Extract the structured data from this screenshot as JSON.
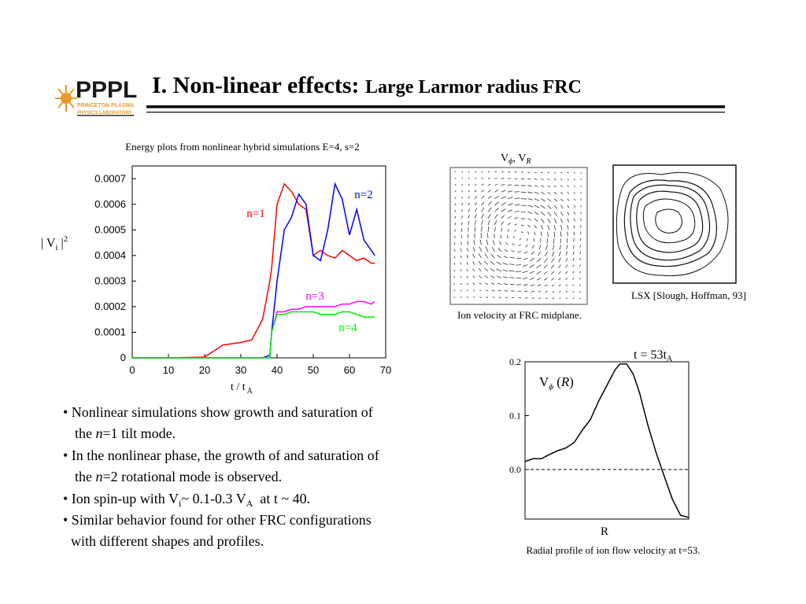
{
  "header": {
    "logo": [
      "PPPL",
      "PRINCETON PLASMA",
      "PHYSICS LABORATORY"
    ],
    "title": "I. Non-linear effects:",
    "subtitle": "Large Larmor radius FRC"
  },
  "figures": {
    "vector_label": [
      "V",
      "ϕ",
      ", V",
      "R"
    ],
    "vector_caption": "Ion velocity at FRC midplane.",
    "contour_caption": "LSX [Slough, Hoffman, 93]"
  },
  "bullets": [
    [
      "• Nonlinear simulations show growth and saturation of"
    ],
    [
      "the ",
      "n",
      "=1 tilt mode."
    ],
    [
      "• In the nonlinear phase, the growth of and saturation of"
    ],
    [
      "the ",
      "n",
      "=2 rotational mode is observed."
    ],
    [
      "• Ion spin-up with V",
      "i",
      "~ 0.1-0.3 V",
      "A",
      "  at t ~ 40."
    ],
    [
      "• Similar behavior found for other FRC configurations"
    ],
    [
      "with different shapes and profiles."
    ]
  ],
  "chart_data": [
    {
      "type": "line",
      "title": "Energy plots from nonlinear hybrid simulations E=4, s=2",
      "xlabel": [
        "t / t",
        "A"
      ],
      "ylabel": [
        "| V",
        "i",
        " |",
        "2"
      ],
      "x": [
        0,
        10,
        20,
        25,
        30,
        33,
        36,
        38,
        38.5,
        40,
        42,
        44,
        46,
        48,
        50,
        52,
        54,
        56,
        58,
        60,
        62,
        64,
        66,
        67
      ],
      "series": [
        {
          "name": "n=1",
          "color": "#ff0000",
          "values": [
            0,
            0,
            3e-06,
            5e-05,
            6e-05,
            7e-05,
            0.00015,
            0.0003,
            0.00035,
            0.0006,
            0.00068,
            0.00065,
            0.0006,
            0.00058,
            0.0004,
            0.00042,
            0.0004,
            0.00039,
            0.00042,
            0.0004,
            0.00038,
            0.00039,
            0.00037,
            0.00037
          ]
        },
        {
          "name": "n=2",
          "color": "#0000ff",
          "values": [
            0,
            0,
            0,
            0,
            0,
            0,
            0,
            1e-05,
            0.0001,
            0.0003,
            0.0005,
            0.00055,
            0.00064,
            0.0006,
            0.0004,
            0.00038,
            0.0005,
            0.00068,
            0.00062,
            0.00048,
            0.00058,
            0.00046,
            0.00042,
            0.0004
          ]
        },
        {
          "name": "n=3",
          "color": "#ff00ff",
          "values": [
            0,
            0,
            0,
            0,
            0,
            0,
            0,
            0,
            0.0001,
            0.00018,
            0.00018,
            0.00019,
            0.00019,
            0.0002,
            0.0002,
            0.0002,
            0.0002,
            0.0002,
            0.00021,
            0.00021,
            0.00022,
            0.00022,
            0.00021,
            0.00022
          ]
        },
        {
          "name": "n=4",
          "color": "#00ee00",
          "values": [
            0,
            0,
            0,
            0,
            0,
            0,
            0,
            0,
            0.0001,
            0.00017,
            0.00017,
            0.00018,
            0.00018,
            0.00018,
            0.00018,
            0.00017,
            0.00017,
            0.00017,
            0.00018,
            0.00018,
            0.00017,
            0.00016,
            0.00016,
            0.00016
          ]
        }
      ],
      "xlim": [
        0,
        70
      ],
      "xticks": [
        0,
        10,
        20,
        30,
        40,
        50,
        60,
        70
      ],
      "ylim": [
        0,
        0.00075
      ],
      "yticks": [
        0,
        0.0001,
        0.0002,
        0.0003,
        0.0004,
        0.0005,
        0.0006,
        0.0007
      ]
    },
    {
      "type": "line",
      "title": "Radial profile of ion flow velocity at t=53.",
      "xlabel": [
        "R"
      ],
      "annotations": [
        [
          "t = 53t",
          "A"
        ],
        [
          "V",
          "ϕ",
          " (",
          "R",
          ")"
        ]
      ],
      "x": [
        0,
        0.05,
        0.1,
        0.15,
        0.2,
        0.25,
        0.3,
        0.35,
        0.4,
        0.45,
        0.5,
        0.55,
        0.58,
        0.62,
        0.66,
        0.7,
        0.75,
        0.8,
        0.85,
        0.9,
        0.95,
        1.0
      ],
      "series": [
        {
          "name": "V",
          "color": "#000000",
          "values": [
            0.015,
            0.02,
            0.02,
            0.028,
            0.035,
            0.04,
            0.05,
            0.073,
            0.093,
            0.127,
            0.156,
            0.185,
            0.196,
            0.196,
            0.178,
            0.142,
            0.083,
            0.032,
            -0.012,
            -0.055,
            -0.085,
            -0.089
          ]
        }
      ],
      "xlim": [
        0,
        1
      ],
      "ylim": [
        -0.092,
        0.2
      ],
      "yticks": [
        0.2,
        0.1,
        {
          "value": 0,
          "label": "0.0"
        }
      ],
      "zero_line": "dashed"
    }
  ]
}
